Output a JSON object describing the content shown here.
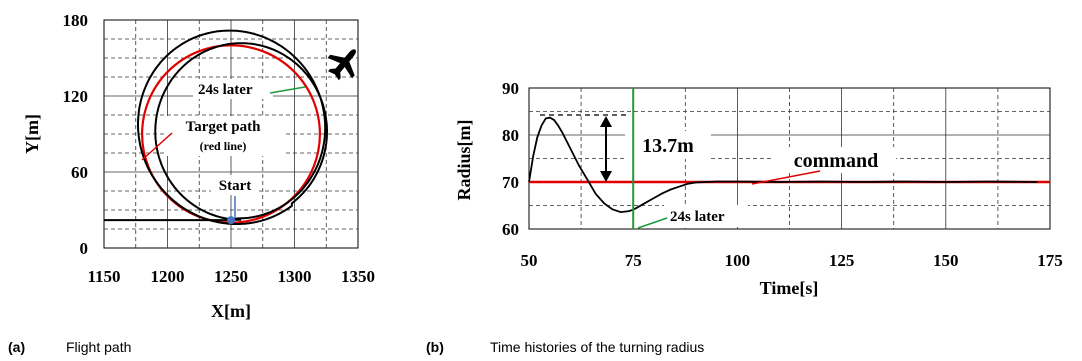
{
  "colors": {
    "red": "#e00000",
    "green": "#1e9a3c",
    "black": "#000000",
    "blue": "#4472c4",
    "grid": "#333333"
  },
  "chart_data": [
    {
      "type": "line",
      "panel": "(a)",
      "caption": "Flight path",
      "xlabel": "X[m]",
      "ylabel": "Y[m]",
      "xlim": [
        1150,
        1350
      ],
      "ylim": [
        0,
        180
      ],
      "x_ticks": [
        "1150",
        "1200",
        "1250",
        "1300",
        "1350"
      ],
      "y_ticks": [
        "0",
        "60",
        "120",
        "180"
      ],
      "grid": "dashed",
      "target_path": {
        "name": "Target path (red line)",
        "shape": "circle",
        "center": [
          1250,
          90
        ],
        "radius": 70
      },
      "flight_path": {
        "approach": [
          [
            1150,
            22
          ],
          [
            1250,
            22
          ]
        ],
        "center": [
          1255,
          92
        ],
        "start_radius": 70,
        "max_radius": 84,
        "turns": 2
      },
      "annotations": {
        "later": "24s later",
        "target_line1": "Target path",
        "target_line2": "(red line)",
        "start": "Start",
        "start_point": [
          1250,
          22
        ]
      },
      "icons": [
        "airplane-icon"
      ]
    },
    {
      "type": "line",
      "panel": "(b)",
      "caption": "Time histories of the turning radius",
      "xlabel": "Time[s]",
      "ylabel": "Radius[m]",
      "xlim": [
        50,
        175
      ],
      "ylim": [
        60,
        90
      ],
      "x_ticks": [
        "50",
        "75",
        "100",
        "125",
        "150",
        "175"
      ],
      "y_ticks": [
        "60",
        "70",
        "80",
        "90"
      ],
      "grid": "dashed",
      "series": [
        {
          "name": "command",
          "x": [
            50,
            175
          ],
          "y": [
            70,
            70
          ]
        },
        {
          "name": "",
          "x": [
            50,
            51,
            52,
            53,
            54,
            55,
            56,
            57,
            58,
            60,
            62,
            64,
            66,
            68,
            70,
            72,
            74,
            75,
            76,
            78,
            80,
            82,
            84,
            86,
            88,
            90,
            95,
            100,
            110,
            120,
            130,
            140,
            150,
            160,
            172
          ],
          "y": [
            70,
            75.5,
            79.5,
            82,
            83.5,
            83.7,
            83.2,
            82,
            80.5,
            77,
            73.5,
            70.5,
            67.5,
            65.5,
            64.2,
            63.6,
            63.8,
            64.1,
            64.6,
            65.6,
            66.6,
            67.6,
            68.4,
            69,
            69.6,
            69.9,
            70.1,
            70.1,
            70,
            70.1,
            70,
            70.1,
            70,
            70.1,
            70
          ]
        }
      ],
      "annotations": {
        "peak_delta": "13.7m",
        "command": "command",
        "later": "24s later",
        "marker_time": 75
      }
    }
  ]
}
